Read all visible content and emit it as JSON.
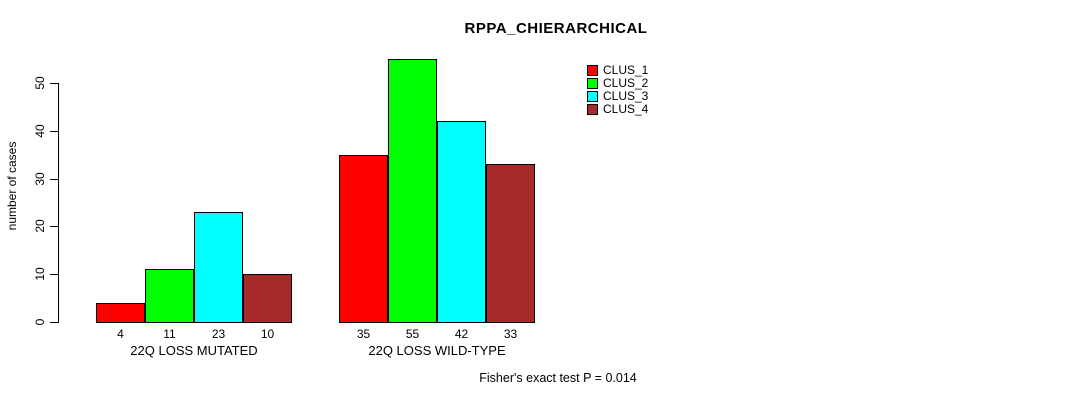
{
  "chart_data": {
    "type": "bar",
    "title": "RPPA_CHIERARCHICAL",
    "ylabel": "number of cases",
    "xlabel": "",
    "ylim": [
      0,
      55
    ],
    "yticks": [
      0,
      10,
      20,
      30,
      40,
      50
    ],
    "categories": [
      "22Q LOSS MUTATED",
      "22Q LOSS WILD-TYPE"
    ],
    "series": [
      {
        "name": "CLUS_1",
        "color": "#ff0000",
        "values": [
          4,
          35
        ]
      },
      {
        "name": "CLUS_2",
        "color": "#00ff00",
        "values": [
          11,
          55
        ]
      },
      {
        "name": "CLUS_3",
        "color": "#00ffff",
        "values": [
          23,
          42
        ]
      },
      {
        "name": "CLUS_4",
        "color": "#a52a2a",
        "values": [
          10,
          33
        ]
      }
    ],
    "bar_value_labels": [
      [
        "4",
        "11",
        "23",
        "10"
      ],
      [
        "35",
        "55",
        "42",
        "33"
      ]
    ],
    "legend_position": "top-right",
    "grid": false,
    "annotation": "Fisher's exact test P = 0.014"
  }
}
